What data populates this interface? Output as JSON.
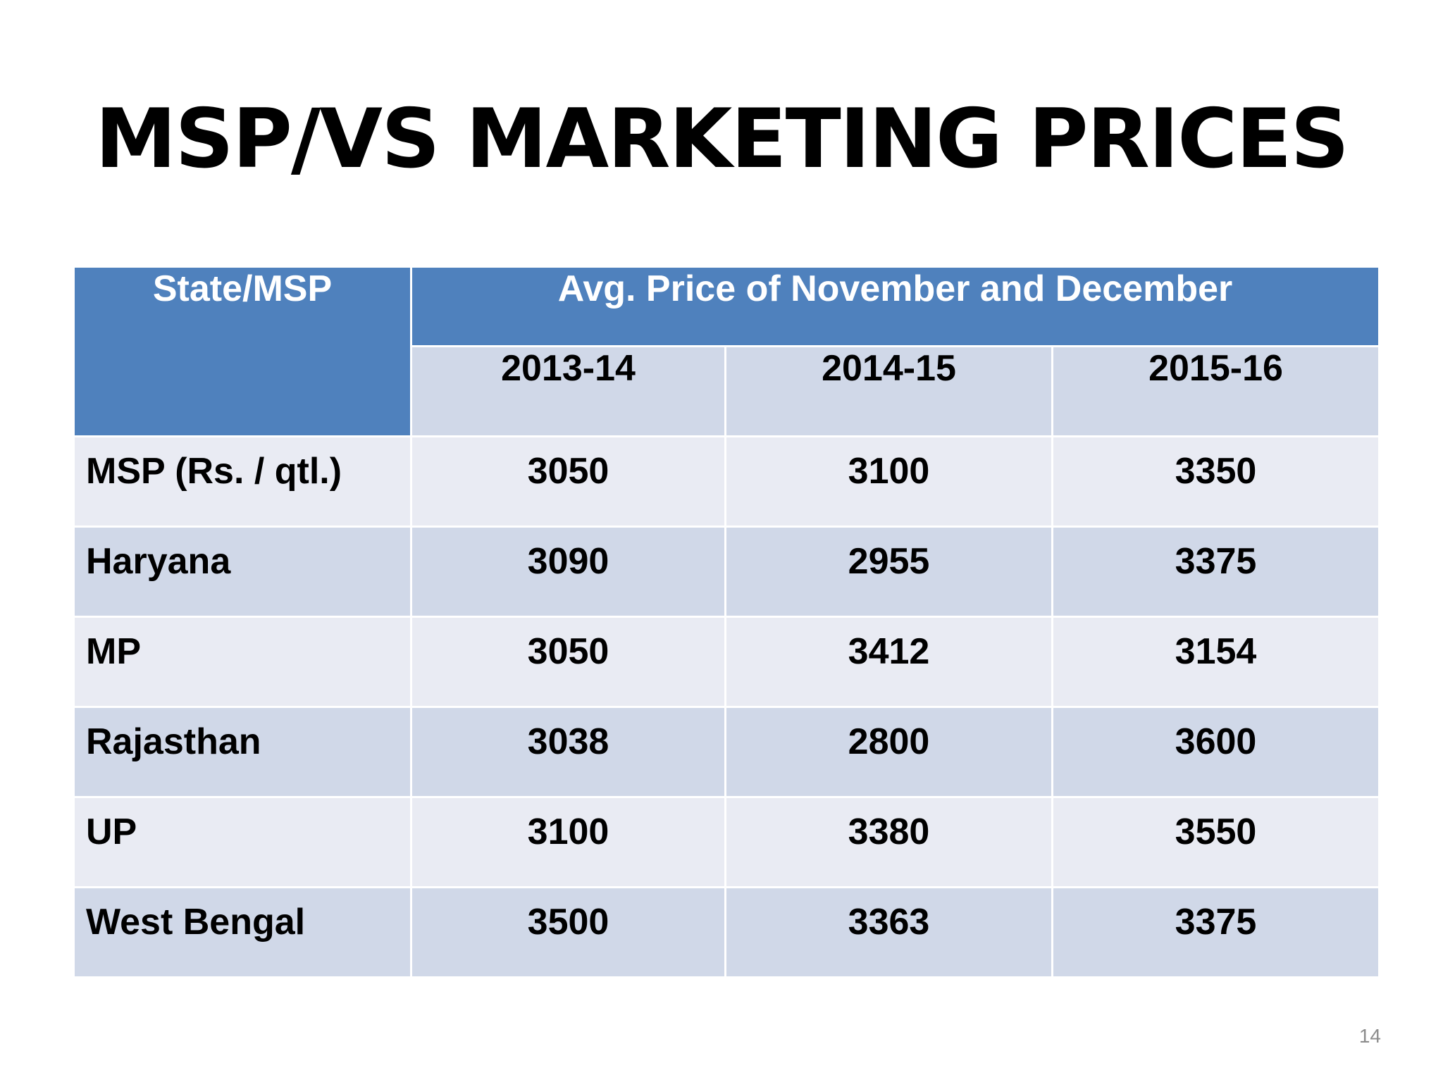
{
  "slide": {
    "title": "MSP/VS MARKETING PRICES",
    "page_number": "14"
  },
  "table": {
    "header_state": "State/MSP",
    "header_group": "Avg. Price of November and December",
    "years": [
      "2013-14",
      "2014-15",
      "2015-16"
    ],
    "rows": [
      {
        "state": "MSP (Rs. / qtl.)",
        "values": [
          "3050",
          "3100",
          "3350"
        ]
      },
      {
        "state": "Haryana",
        "values": [
          "3090",
          "2955",
          "3375"
        ]
      },
      {
        "state": "MP",
        "values": [
          "3050",
          "3412",
          "3154"
        ]
      },
      {
        "state": "Rajasthan",
        "values": [
          "3038",
          "2800",
          "3600"
        ]
      },
      {
        "state": "UP",
        "values": [
          "3100",
          "3380",
          "3550"
        ]
      },
      {
        "state": "West Bengal",
        "values": [
          "3500",
          "3363",
          "3375"
        ]
      }
    ]
  },
  "colors": {
    "header_blue": "#4f81bd",
    "band_dark": "#d0d8e8",
    "band_light": "#e9ebf3"
  }
}
